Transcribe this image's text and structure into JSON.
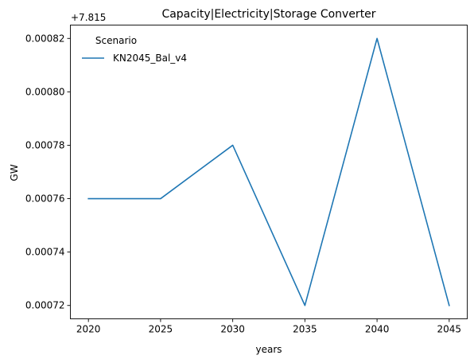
{
  "chart_data": {
    "type": "line",
    "title": "Capacity|Electricity|Storage Converter",
    "xlabel": "years",
    "ylabel": "GW",
    "offset_label": "+7.815",
    "x": [
      2020,
      2025,
      2030,
      2035,
      2040,
      2045
    ],
    "series": [
      {
        "name": "KN2045_Bal_v4",
        "color": "#1f77b4",
        "values": [
          7.81576,
          7.81576,
          7.81578,
          7.81572,
          7.81582,
          7.81572
        ]
      }
    ],
    "offset": 7.815,
    "xticks": [
      2020,
      2025,
      2030,
      2035,
      2040,
      2045
    ],
    "xtick_labels": [
      "2020",
      "2025",
      "2030",
      "2035",
      "2040",
      "2045"
    ],
    "yticks": [
      0.00072,
      0.00074,
      0.00076,
      0.00078,
      0.0008,
      0.00082
    ],
    "ytick_labels": [
      "0.00072",
      "0.00074",
      "0.00076",
      "0.00078",
      "0.00080",
      "0.00082"
    ],
    "xlim": [
      2018.75,
      2046.25
    ],
    "ylim_offset": [
      0.000715,
      0.000825
    ],
    "grid": false,
    "legend": {
      "title": "Scenario",
      "placement": "top-left"
    }
  }
}
